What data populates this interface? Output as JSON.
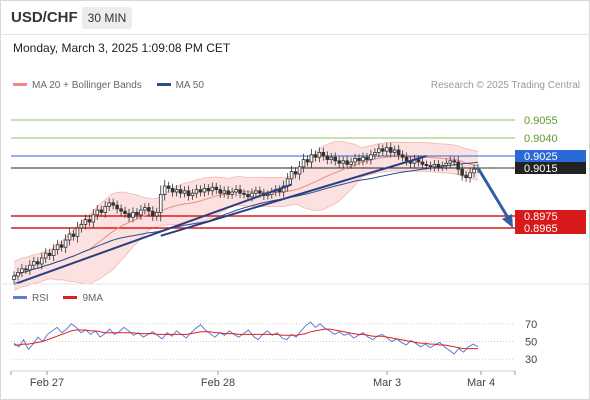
{
  "header": {
    "pair": "USD/CHF",
    "timeframe": "30 MIN"
  },
  "datetime": "Monday, March 3, 2025 1:09:08 PM CET",
  "legend": {
    "ma20": {
      "label": "MA 20 + Bollinger Bands",
      "color": "#f08a80"
    },
    "ma50": {
      "label": "MA 50",
      "color": "#2a4f8f"
    }
  },
  "credit": "Research © 2025 Trading Central",
  "rsi_legend": {
    "rsi": {
      "label": "RSI",
      "color": "#5a7fd6"
    },
    "ma9": {
      "label": "9MA",
      "color": "#e02020"
    }
  },
  "colors": {
    "bull": "#3a3a3a",
    "bear": "#3a3a3a",
    "band_fill": "#fbdcdc",
    "trendline": "#2a3f80",
    "arrow": "#2f5fa0"
  },
  "chart_data": [
    {
      "type": "candlestick",
      "title": "USD/CHF 30 MIN",
      "x_ticks": [
        "Feb 27",
        "Feb 28",
        "Mar 3",
        "Mar 4"
      ],
      "ylim": [
        0.892,
        0.9075
      ],
      "levels": [
        {
          "label": "0.9055",
          "value": 0.9055,
          "color": "#8fc45a",
          "style": "line"
        },
        {
          "label": "0.9040",
          "value": 0.904,
          "color": "#8fc45a",
          "style": "line"
        },
        {
          "label": "0.9025",
          "value": 0.9025,
          "color": "#2a6ad8",
          "style": "box"
        },
        {
          "label": "0.9015",
          "value": 0.9015,
          "color": "#222222",
          "style": "box"
        },
        {
          "label": "0.8975",
          "value": 0.8975,
          "color": "#d91a1a",
          "style": "box"
        },
        {
          "label": "0.8965",
          "value": 0.8965,
          "color": "#d91a1a",
          "style": "box"
        }
      ],
      "close_series": [
        0.8925,
        0.8928,
        0.8931,
        0.893,
        0.8934,
        0.8937,
        0.8935,
        0.894,
        0.8944,
        0.8942,
        0.8947,
        0.8951,
        0.8949,
        0.8955,
        0.896,
        0.8958,
        0.8965,
        0.8968,
        0.8972,
        0.897,
        0.8976,
        0.898,
        0.8978,
        0.8983,
        0.8986,
        0.8984,
        0.8981,
        0.8979,
        0.8977,
        0.8974,
        0.8978,
        0.8976,
        0.898,
        0.8982,
        0.8979,
        0.8975,
        0.8978,
        0.8993,
        0.9,
        0.8998,
        0.8995,
        0.8997,
        0.8994,
        0.8996,
        0.8992,
        0.8994,
        0.8997,
        0.8995,
        0.8998,
        0.8996,
        0.8999,
        0.8997,
        0.8994,
        0.8996,
        0.8993,
        0.8995,
        0.8997,
        0.8994,
        0.8993,
        0.8991,
        0.8994,
        0.8996,
        0.8994,
        0.8992,
        0.8993,
        0.8995,
        0.8997,
        0.8995,
        0.9,
        0.9006,
        0.9012,
        0.901,
        0.9016,
        0.9022,
        0.902,
        0.9026,
        0.9024,
        0.9028,
        0.9025,
        0.9022,
        0.9024,
        0.9021,
        0.9019,
        0.9021,
        0.9018,
        0.902,
        0.9023,
        0.9021,
        0.9024,
        0.9022,
        0.9026,
        0.9028,
        0.9031,
        0.9029,
        0.9032,
        0.9028,
        0.903,
        0.9026,
        0.9024,
        0.9021,
        0.9019,
        0.9022,
        0.902,
        0.9018,
        0.9017,
        0.9016,
        0.9018,
        0.9016,
        0.9017,
        0.9019,
        0.9021,
        0.902,
        0.9014,
        0.9009,
        0.9007,
        0.9011,
        0.9014,
        0.9015
      ],
      "moving_averages": [
        {
          "name": "MA 20 + Bollinger Bands",
          "color": "#f08a80"
        },
        {
          "name": "MA 50",
          "color": "#2a4f8f"
        }
      ],
      "forecast": {
        "from": 0.9015,
        "to": 0.897
      }
    },
    {
      "type": "line",
      "title": "RSI",
      "y_ticks": [
        70,
        50,
        30
      ],
      "ylim": [
        20,
        80
      ],
      "series": [
        {
          "name": "RSI",
          "color": "#5a7fd6",
          "values": [
            48,
            44,
            52,
            41,
            47,
            55,
            50,
            58,
            62,
            66,
            60,
            64,
            70,
            66,
            60,
            63,
            58,
            62,
            55,
            59,
            64,
            58,
            61,
            66,
            62,
            57,
            60,
            55,
            58,
            61,
            57,
            53,
            60,
            56,
            62,
            58,
            54,
            60,
            65,
            69,
            63,
            59,
            55,
            60,
            57,
            62,
            58,
            55,
            59,
            63,
            56,
            52,
            58,
            62,
            57,
            60,
            54,
            52,
            58,
            55,
            62,
            68,
            72,
            66,
            70,
            65,
            62,
            58,
            61,
            57,
            59,
            54,
            57,
            60,
            55,
            52,
            56,
            58,
            54,
            50,
            53,
            49,
            46,
            51,
            48,
            44,
            47,
            43,
            46,
            49,
            44,
            40,
            36,
            42,
            38,
            44,
            47,
            44
          ]
        },
        {
          "name": "9MA",
          "color": "#e02020",
          "values": [
            46,
            46,
            47,
            47,
            48,
            49,
            50,
            52,
            54,
            56,
            58,
            60,
            62,
            63,
            63,
            63,
            62,
            62,
            61,
            60,
            60,
            60,
            60,
            60,
            60,
            60,
            59,
            59,
            59,
            59,
            58,
            58,
            58,
            58,
            58,
            58,
            58,
            59,
            60,
            61,
            61,
            61,
            60,
            60,
            59,
            59,
            59,
            58,
            58,
            58,
            58,
            58,
            58,
            58,
            58,
            58,
            57,
            57,
            57,
            57,
            58,
            59,
            61,
            62,
            63,
            64,
            64,
            63,
            62,
            61,
            60,
            59,
            58,
            58,
            57,
            56,
            56,
            56,
            55,
            54,
            53,
            52,
            51,
            50,
            49,
            48,
            48,
            47,
            47,
            46,
            46,
            45,
            44,
            43,
            42,
            42,
            42,
            42
          ]
        }
      ]
    }
  ]
}
